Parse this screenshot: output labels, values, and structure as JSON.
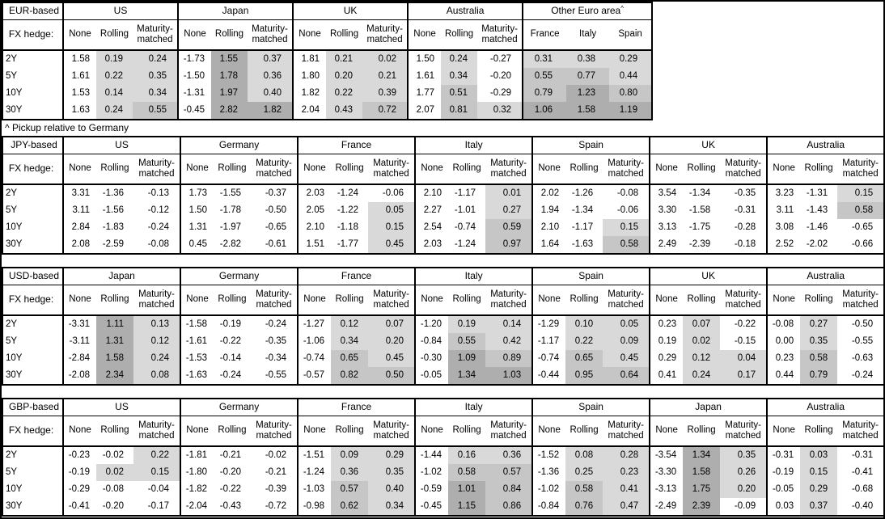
{
  "footnote": "^ Pickup relative to Germany",
  "row_header_label": "FX hedge:",
  "row_labels": [
    "2Y",
    "5Y",
    "10Y",
    "30Y"
  ],
  "hedge_columns": [
    "None",
    "Rolling",
    "Maturity-matched"
  ],
  "shade_colors": {
    "none": "#ffffff",
    "light": "#d9d9d9",
    "medium": "#c6c6c6",
    "dark": "#aeaeae"
  },
  "shade_rule": {
    "light_above": 0,
    "medium_at": 0.5,
    "dark_at": 1.0
  },
  "chart_data": {
    "type": "table",
    "tables": [
      {
        "label": "EUR-based",
        "groups": [
          {
            "name": "US",
            "rows": [
              [
                "1.58",
                "0.19",
                "0.24"
              ],
              [
                "1.61",
                "0.22",
                "0.35"
              ],
              [
                "1.53",
                "0.14",
                "0.34"
              ],
              [
                "1.63",
                "0.24",
                "0.55"
              ]
            ]
          },
          {
            "name": "Japan",
            "rows": [
              [
                "-1.73",
                "1.55",
                "0.37"
              ],
              [
                "-1.50",
                "1.78",
                "0.36"
              ],
              [
                "-1.31",
                "1.97",
                "0.40"
              ],
              [
                "-0.45",
                "2.82",
                "1.82"
              ]
            ]
          },
          {
            "name": "UK",
            "rows": [
              [
                "1.81",
                "0.21",
                "0.02"
              ],
              [
                "1.80",
                "0.20",
                "0.21"
              ],
              [
                "1.82",
                "0.22",
                "0.39"
              ],
              [
                "2.04",
                "0.43",
                "0.72"
              ]
            ]
          },
          {
            "name": "Australia",
            "rows": [
              [
                "1.50",
                "0.24",
                "-0.27"
              ],
              [
                "1.61",
                "0.34",
                "-0.20"
              ],
              [
                "1.77",
                "0.51",
                "-0.29"
              ],
              [
                "2.07",
                "0.81",
                "0.32"
              ]
            ]
          },
          {
            "name": "Other Euro area",
            "superscript": "^",
            "columns": [
              "France",
              "Italy",
              "Spain"
            ],
            "shade_all": true,
            "rows": [
              [
                "0.31",
                "0.38",
                "0.29"
              ],
              [
                "0.55",
                "0.77",
                "0.44"
              ],
              [
                "0.79",
                "1.23",
                "0.80"
              ],
              [
                "1.06",
                "1.58",
                "1.19"
              ]
            ]
          }
        ]
      },
      {
        "label": "JPY-based",
        "groups": [
          {
            "name": "US",
            "rows": [
              [
                "3.31",
                "-1.36",
                "-0.13"
              ],
              [
                "3.11",
                "-1.56",
                "-0.12"
              ],
              [
                "2.84",
                "-1.83",
                "-0.24"
              ],
              [
                "2.08",
                "-2.59",
                "-0.08"
              ]
            ]
          },
          {
            "name": "Germany",
            "rows": [
              [
                "1.73",
                "-1.55",
                "-0.37"
              ],
              [
                "1.50",
                "-1.78",
                "-0.50"
              ],
              [
                "1.31",
                "-1.97",
                "-0.65"
              ],
              [
                "0.45",
                "-2.82",
                "-0.61"
              ]
            ]
          },
          {
            "name": "France",
            "rows": [
              [
                "2.03",
                "-1.24",
                "-0.06"
              ],
              [
                "2.05",
                "-1.22",
                "0.05"
              ],
              [
                "2.10",
                "-1.18",
                "0.15"
              ],
              [
                "1.51",
                "-1.77",
                "0.45"
              ]
            ]
          },
          {
            "name": "Italy",
            "rows": [
              [
                "2.10",
                "-1.17",
                "0.01"
              ],
              [
                "2.27",
                "-1.01",
                "0.27"
              ],
              [
                "2.54",
                "-0.74",
                "0.59"
              ],
              [
                "2.03",
                "-1.24",
                "0.97"
              ]
            ]
          },
          {
            "name": "Spain",
            "rows": [
              [
                "2.02",
                "-1.26",
                "-0.08"
              ],
              [
                "1.94",
                "-1.34",
                "-0.06"
              ],
              [
                "2.10",
                "-1.17",
                "0.15"
              ],
              [
                "1.64",
                "-1.63",
                "0.58"
              ]
            ]
          },
          {
            "name": "UK",
            "rows": [
              [
                "3.54",
                "-1.34",
                "-0.35"
              ],
              [
                "3.30",
                "-1.58",
                "-0.31"
              ],
              [
                "3.13",
                "-1.75",
                "-0.28"
              ],
              [
                "2.49",
                "-2.39",
                "-0.18"
              ]
            ]
          },
          {
            "name": "Australia",
            "rows": [
              [
                "3.23",
                "-1.31",
                "0.15"
              ],
              [
                "3.11",
                "-1.43",
                "0.58"
              ],
              [
                "3.08",
                "-1.46",
                "-0.65"
              ],
              [
                "2.52",
                "-2.02",
                "-0.66"
              ]
            ]
          }
        ]
      },
      {
        "label": "USD-based",
        "groups": [
          {
            "name": "Japan",
            "rows": [
              [
                "-3.31",
                "1.11",
                "0.13"
              ],
              [
                "-3.11",
                "1.31",
                "0.12"
              ],
              [
                "-2.84",
                "1.58",
                "0.24"
              ],
              [
                "-2.08",
                "2.34",
                "0.08"
              ]
            ]
          },
          {
            "name": "Germany",
            "rows": [
              [
                "-1.58",
                "-0.19",
                "-0.24"
              ],
              [
                "-1.61",
                "-0.22",
                "-0.35"
              ],
              [
                "-1.53",
                "-0.14",
                "-0.34"
              ],
              [
                "-1.63",
                "-0.24",
                "-0.55"
              ]
            ]
          },
          {
            "name": "France",
            "rows": [
              [
                "-1.27",
                "0.12",
                "0.07"
              ],
              [
                "-1.06",
                "0.34",
                "0.20"
              ],
              [
                "-0.74",
                "0.65",
                "0.45"
              ],
              [
                "-0.57",
                "0.82",
                "0.50"
              ]
            ]
          },
          {
            "name": "Italy",
            "rows": [
              [
                "-1.20",
                "0.19",
                "0.14"
              ],
              [
                "-0.84",
                "0.55",
                "0.42"
              ],
              [
                "-0.30",
                "1.09",
                "0.89"
              ],
              [
                "-0.05",
                "1.34",
                "1.03"
              ]
            ]
          },
          {
            "name": "Spain",
            "rows": [
              [
                "-1.29",
                "0.10",
                "0.05"
              ],
              [
                "-1.17",
                "0.22",
                "0.09"
              ],
              [
                "-0.74",
                "0.65",
                "0.45"
              ],
              [
                "-0.44",
                "0.95",
                "0.64"
              ]
            ]
          },
          {
            "name": "UK",
            "rows": [
              [
                "0.23",
                "0.07",
                "-0.22"
              ],
              [
                "0.19",
                "0.02",
                "-0.15"
              ],
              [
                "0.29",
                "0.12",
                "0.04"
              ],
              [
                "0.41",
                "0.24",
                "0.17"
              ]
            ]
          },
          {
            "name": "Australia",
            "rows": [
              [
                "-0.08",
                "0.27",
                "-0.50"
              ],
              [
                "0.00",
                "0.35",
                "-0.55"
              ],
              [
                "0.23",
                "0.58",
                "-0.63"
              ],
              [
                "0.44",
                "0.79",
                "-0.24"
              ]
            ]
          }
        ]
      },
      {
        "label": "GBP-based",
        "groups": [
          {
            "name": "US",
            "rows": [
              [
                "-0.23",
                "-0.02",
                "0.22"
              ],
              [
                "-0.19",
                "0.02",
                "0.15"
              ],
              [
                "-0.29",
                "-0.08",
                "-0.04"
              ],
              [
                "-0.41",
                "-0.20",
                "-0.17"
              ]
            ]
          },
          {
            "name": "Germany",
            "rows": [
              [
                "-1.81",
                "-0.21",
                "-0.02"
              ],
              [
                "-1.80",
                "-0.20",
                "-0.21"
              ],
              [
                "-1.82",
                "-0.22",
                "-0.39"
              ],
              [
                "-2.04",
                "-0.43",
                "-0.72"
              ]
            ]
          },
          {
            "name": "France",
            "rows": [
              [
                "-1.51",
                "0.09",
                "0.29"
              ],
              [
                "-1.24",
                "0.36",
                "0.35"
              ],
              [
                "-1.03",
                "0.57",
                "0.40"
              ],
              [
                "-0.98",
                "0.62",
                "0.34"
              ]
            ]
          },
          {
            "name": "Italy",
            "rows": [
              [
                "-1.44",
                "0.16",
                "0.36"
              ],
              [
                "-1.02",
                "0.58",
                "0.57"
              ],
              [
                "-0.59",
                "1.01",
                "0.84"
              ],
              [
                "-0.45",
                "1.15",
                "0.86"
              ]
            ]
          },
          {
            "name": "Spain",
            "rows": [
              [
                "-1.52",
                "0.08",
                "0.28"
              ],
              [
                "-1.36",
                "0.25",
                "0.23"
              ],
              [
                "-1.02",
                "0.58",
                "0.41"
              ],
              [
                "-0.84",
                "0.76",
                "0.47"
              ]
            ]
          },
          {
            "name": "Japan",
            "rows": [
              [
                "-3.54",
                "1.34",
                "0.35"
              ],
              [
                "-3.30",
                "1.58",
                "0.26"
              ],
              [
                "-3.13",
                "1.75",
                "0.20"
              ],
              [
                "-2.49",
                "2.39",
                "-0.09"
              ]
            ]
          },
          {
            "name": "Australia",
            "rows": [
              [
                "-0.31",
                "0.03",
                "-0.31"
              ],
              [
                "-0.19",
                "0.15",
                "-0.41"
              ],
              [
                "-0.05",
                "0.29",
                "-0.68"
              ],
              [
                "0.03",
                "0.37",
                "-0.40"
              ]
            ]
          }
        ]
      }
    ]
  }
}
